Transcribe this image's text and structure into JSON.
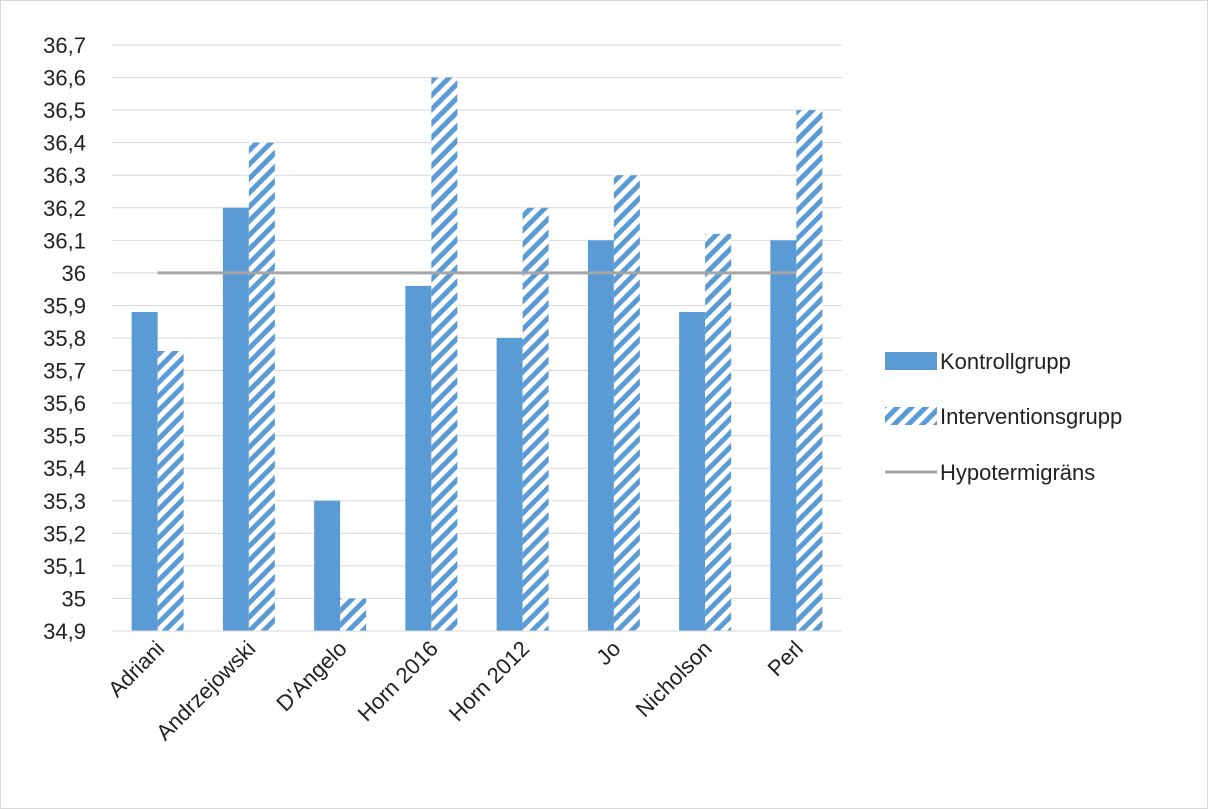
{
  "chart_data": {
    "type": "bar",
    "title": "",
    "xlabel": "",
    "ylabel": "",
    "categories": [
      "Adriani",
      "Andrzejowski",
      "D'Angelo",
      "Horn 2016",
      "Horn 2012",
      "Jo",
      "Nicholson",
      "Perl"
    ],
    "series": [
      {
        "name": "Kontrollgrupp",
        "values": [
          35.88,
          36.2,
          35.3,
          35.96,
          35.8,
          36.1,
          35.88,
          36.1
        ],
        "color": "#5b9bd5",
        "pattern": "solid"
      },
      {
        "name": "Interventionsgrupp",
        "values": [
          35.76,
          36.4,
          35.0,
          36.6,
          36.2,
          36.3,
          36.12,
          36.5
        ],
        "color": "#5b9bd5",
        "pattern": "diagonal-stripes"
      }
    ],
    "reference_line": {
      "name": "Hypotermigräns",
      "value": 36.0,
      "color": "#a5a5a5"
    },
    "y_ticks": [
      "34,9",
      "35",
      "35,1",
      "35,2",
      "35,3",
      "35,4",
      "35,5",
      "35,6",
      "35,7",
      "35,8",
      "35,9",
      "36",
      "36,1",
      "36,2",
      "36,3",
      "36,4",
      "36,5",
      "36,6",
      "36,7"
    ],
    "ylim": [
      34.9,
      36.7
    ],
    "ytick_step": 0.1,
    "grid": true,
    "legend_position": "right"
  }
}
